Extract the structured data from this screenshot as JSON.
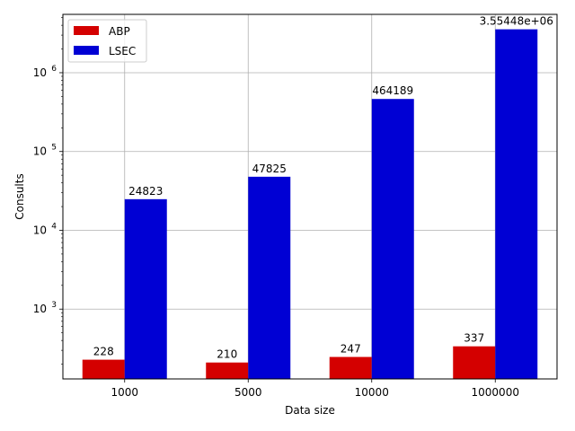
{
  "chart_data": {
    "type": "bar",
    "title": "",
    "xlabel": "Data size",
    "ylabel": "Consults",
    "yscale": "log",
    "ylim": [
      130,
      5500000
    ],
    "grid": true,
    "legend_position": "top-left",
    "categories": [
      "1000",
      "5000",
      "10000",
      "1000000"
    ],
    "series": [
      {
        "name": "ABP",
        "color": "#d40000",
        "values": [
          228,
          210,
          247,
          337
        ],
        "labels": [
          "228",
          "210",
          "247",
          "337"
        ]
      },
      {
        "name": "LSEC",
        "color": "#0000d4",
        "values": [
          24823,
          47825,
          464189,
          3554480
        ],
        "labels": [
          "24823",
          "47825",
          "464189",
          "3.55448e+06"
        ]
      }
    ],
    "y_ticks": [
      {
        "value": 1000,
        "base": "10",
        "exp": "3"
      },
      {
        "value": 10000,
        "base": "10",
        "exp": "4"
      },
      {
        "value": 100000,
        "base": "10",
        "exp": "5"
      },
      {
        "value": 1000000,
        "base": "10",
        "exp": "6"
      }
    ]
  }
}
